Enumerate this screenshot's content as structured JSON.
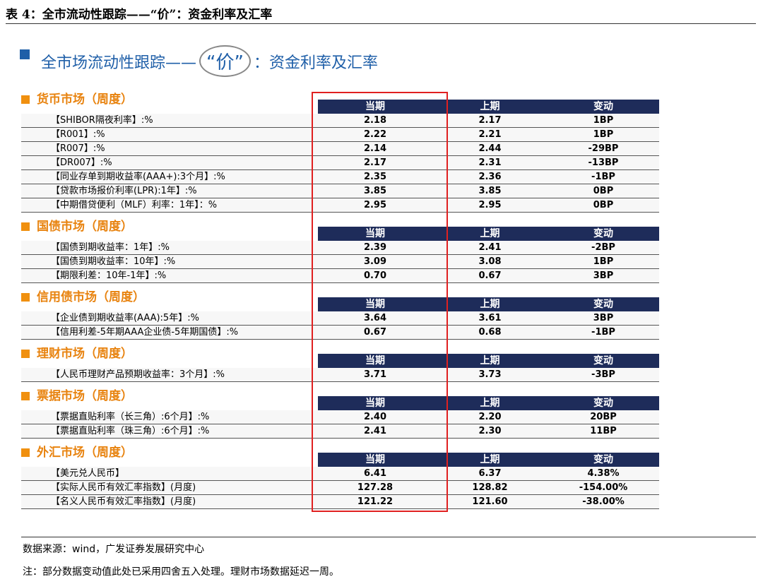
{
  "header": {
    "title": "表 4：全市流动性跟踪——“价”：资金利率及汇率"
  },
  "banner": {
    "prefix": "全市场流动性跟踪——",
    "highlight": "“价”",
    "suffix": "：资金利率及汇率"
  },
  "sections": [
    {
      "title": "货币市场（周度）",
      "columns": [
        "当期",
        "上期",
        "变动"
      ],
      "rows": [
        [
          "【SHIBOR隔夜利率】:%",
          "2.18",
          "2.17",
          "1BP"
        ],
        [
          "【R001】:%",
          "2.22",
          "2.21",
          "1BP"
        ],
        [
          "【R007】:%",
          "2.14",
          "2.44",
          "-29BP"
        ],
        [
          "【DR007】:%",
          "2.17",
          "2.31",
          "-13BP"
        ],
        [
          "【同业存单到期收益率(AAA+):3个月】:%",
          "2.35",
          "2.36",
          "-1BP"
        ],
        [
          "【贷款市场报价利率(LPR):1年】:%",
          "3.85",
          "3.85",
          "0BP"
        ],
        [
          "【中期借贷便利（MLF）利率：1年】：%",
          "2.95",
          "2.95",
          "0BP"
        ]
      ]
    },
    {
      "title": "国债市场（周度）",
      "columns": [
        "当期",
        "上期",
        "变动"
      ],
      "rows": [
        [
          "【国债到期收益率：1年】:%",
          "2.39",
          "2.41",
          "-2BP"
        ],
        [
          "【国债到期收益率：10年】:%",
          "3.09",
          "3.08",
          "1BP"
        ],
        [
          "【期限利差：10年-1年】:%",
          "0.70",
          "0.67",
          "3BP"
        ]
      ]
    },
    {
      "title": "信用债市场（周度）",
      "columns": [
        "当期",
        "上期",
        "变动"
      ],
      "rows": [
        [
          "【企业债到期收益率(AAA):5年】:%",
          "3.64",
          "3.61",
          "3BP"
        ],
        [
          "【信用利差-5年期AAA企业债-5年期国债】:%",
          "0.67",
          "0.68",
          "-1BP"
        ]
      ]
    },
    {
      "title": "理财市场（周度）",
      "columns": [
        "当期",
        "上期",
        "变动"
      ],
      "rows": [
        [
          "【人民币理财产品预期收益率：3个月】:%",
          "3.71",
          "3.73",
          "-3BP"
        ]
      ]
    },
    {
      "title": "票据市场（周度）",
      "columns": [
        "当期",
        "上期",
        "变动"
      ],
      "rows": [
        [
          "【票据直贴利率（长三角）:6个月】:%",
          "2.40",
          "2.20",
          "20BP"
        ],
        [
          "【票据直贴利率（珠三角）:6个月】:%",
          "2.41",
          "2.30",
          "11BP"
        ]
      ]
    },
    {
      "title": "外汇市场（周度）",
      "columns": [
        "当期",
        "上期",
        "变动"
      ],
      "rows": [
        [
          "【美元兑人民币】",
          "6.41",
          "6.37",
          "4.38%"
        ],
        [
          "【实际人民币有效汇率指数】(月度)",
          "127.28",
          "128.82",
          "-154.00%"
        ],
        [
          "【名义人民币有效汇率指数】(月度)",
          "121.22",
          "121.60",
          "-38.00%"
        ]
      ]
    }
  ],
  "footer": {
    "source": "数据来源：wind，广发证券发展研究中心",
    "note": "注：部分数据变动值此处已采用四舍五入处理。理财市场数据延迟一周。"
  }
}
